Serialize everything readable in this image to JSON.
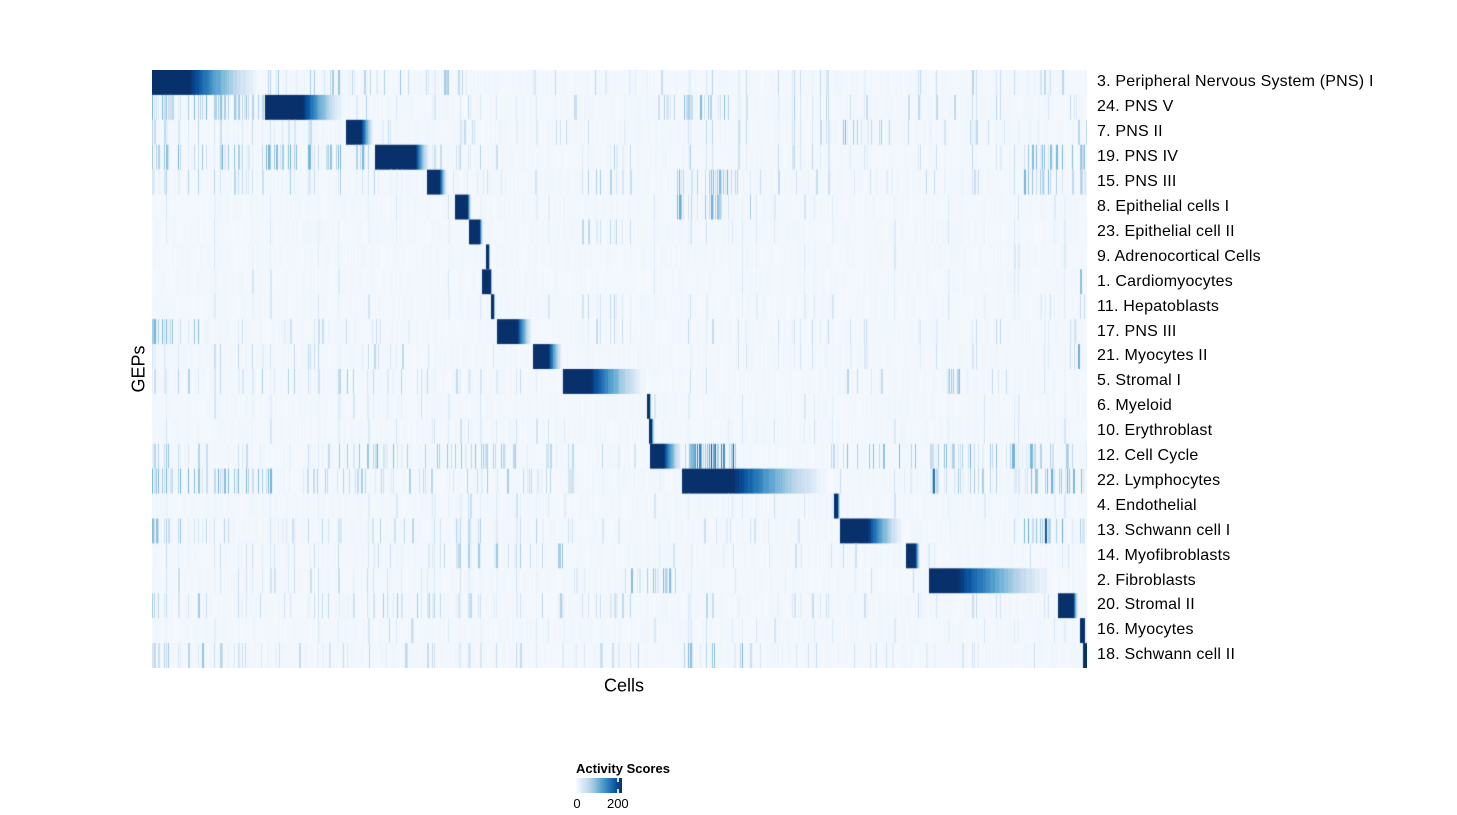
{
  "chart_data": {
    "type": "heatmap",
    "title": "",
    "xlabel": "Cells",
    "ylabel": "GEPs",
    "x_axis": {
      "tick_labels": [],
      "note": "individual cells, no tick labels shown"
    },
    "colormap": {
      "name": "Blues",
      "stops": [
        "#f7fbff",
        "#deebf7",
        "#c6dbef",
        "#9ecae1",
        "#6baed6",
        "#4292c6",
        "#2171b5",
        "#08519c",
        "#08306b"
      ]
    },
    "legend": {
      "title": "Activity Scores",
      "min": 0,
      "max": 220,
      "ticks": [
        {
          "value": 0,
          "label": "0"
        },
        {
          "value": 200,
          "label": "200"
        }
      ]
    },
    "rows": [
      {
        "label": "3. Peripheral Nervous System (PNS) I",
        "block": [
          0.0,
          0.04,
          0.118
        ],
        "noise": [
          [
            0.12,
            0.35,
            0.28,
            0.05,
            0.42
          ],
          [
            0.35,
            0.55,
            0.12,
            0.04,
            0.28
          ],
          [
            0.567,
            0.625,
            0.3,
            0.08,
            0.38
          ],
          [
            0.625,
            0.92,
            0.12,
            0.04,
            0.3
          ],
          [
            0.92,
            0.99,
            0.28,
            0.06,
            0.38
          ]
        ]
      },
      {
        "label": "24. PNS V",
        "block": [
          0.121,
          0.16,
          0.207
        ],
        "noise": [
          [
            0.0,
            0.12,
            0.55,
            0.08,
            0.48
          ],
          [
            0.21,
            0.28,
            0.25,
            0.05,
            0.33
          ],
          [
            0.3,
            0.55,
            0.1,
            0.04,
            0.28
          ],
          [
            0.535,
            0.625,
            0.4,
            0.08,
            0.45
          ],
          [
            0.625,
            1.0,
            0.14,
            0.04,
            0.32
          ]
        ]
      },
      {
        "label": "7. PNS II",
        "block": [
          0.207,
          0.224,
          0.237
        ],
        "noise": [
          [
            0.0,
            0.2,
            0.22,
            0.04,
            0.3
          ],
          [
            0.24,
            0.55,
            0.1,
            0.04,
            0.26
          ],
          [
            0.567,
            0.625,
            0.28,
            0.07,
            0.38
          ],
          [
            0.625,
            0.74,
            0.15,
            0.04,
            0.28
          ],
          [
            0.74,
            0.79,
            0.4,
            0.08,
            0.45
          ],
          [
            0.79,
            1.0,
            0.12,
            0.04,
            0.3
          ]
        ]
      },
      {
        "label": "19. PNS IV",
        "block": [
          0.239,
          0.281,
          0.297
        ],
        "noise": [
          [
            0.0,
            0.235,
            0.45,
            0.07,
            0.5
          ],
          [
            0.3,
            0.38,
            0.18,
            0.05,
            0.33
          ],
          [
            0.46,
            0.52,
            0.18,
            0.05,
            0.33
          ],
          [
            0.567,
            0.625,
            0.3,
            0.07,
            0.4
          ],
          [
            0.625,
            0.92,
            0.12,
            0.04,
            0.28
          ],
          [
            0.92,
            1.0,
            0.38,
            0.07,
            0.48
          ]
        ]
      },
      {
        "label": "15. PNS III",
        "block": [
          0.294,
          0.307,
          0.315
        ],
        "noise": [
          [
            0.0,
            0.29,
            0.26,
            0.04,
            0.36
          ],
          [
            0.32,
            0.45,
            0.14,
            0.04,
            0.28
          ],
          [
            0.46,
            0.53,
            0.28,
            0.06,
            0.38
          ],
          [
            0.562,
            0.632,
            0.5,
            0.12,
            0.52
          ],
          [
            0.632,
            0.92,
            0.13,
            0.04,
            0.28
          ],
          [
            0.92,
            1.0,
            0.4,
            0.08,
            0.5
          ]
        ]
      },
      {
        "label": "8. Epithelial cells I",
        "block": [
          0.324,
          0.337,
          0.341
        ],
        "noise": [
          [
            0.0,
            1.0,
            0.05,
            0.03,
            0.2
          ],
          [
            0.562,
            0.61,
            0.5,
            0.15,
            0.55
          ],
          [
            0.61,
            0.64,
            0.3,
            0.08,
            0.4
          ]
        ]
      },
      {
        "label": "23. Epithelial cell II",
        "block": [
          0.339,
          0.35,
          0.354
        ],
        "noise": [
          [
            0.0,
            1.0,
            0.05,
            0.03,
            0.18
          ],
          [
            0.46,
            0.53,
            0.26,
            0.05,
            0.3
          ],
          [
            0.567,
            0.625,
            0.24,
            0.05,
            0.3
          ]
        ]
      },
      {
        "label": "9. Adrenocortical Cells",
        "block": [
          0.357,
          0.359,
          0.361
        ],
        "noise": [
          [
            0.0,
            1.0,
            0.03,
            0.03,
            0.16
          ]
        ]
      },
      {
        "label": "1. Cardiomyocytes",
        "block": [
          0.353,
          0.361,
          0.364
        ],
        "noise": [
          [
            0.0,
            1.0,
            0.03,
            0.03,
            0.16
          ]
        ],
        "stripes": [
          [
            0.993,
            0.42
          ]
        ]
      },
      {
        "label": "11. Hepatoblasts",
        "block": [
          0.363,
          0.365,
          0.367
        ],
        "noise": [
          [
            0.0,
            1.0,
            0.04,
            0.03,
            0.18
          ],
          [
            0.46,
            0.53,
            0.24,
            0.05,
            0.3
          ],
          [
            0.567,
            0.625,
            0.18,
            0.04,
            0.26
          ],
          [
            0.92,
            1.0,
            0.18,
            0.04,
            0.28
          ]
        ]
      },
      {
        "label": "17. PNS III",
        "block": [
          0.369,
          0.39,
          0.408
        ],
        "noise": [
          [
            0.0,
            0.05,
            0.55,
            0.08,
            0.48
          ],
          [
            0.05,
            0.3,
            0.14,
            0.04,
            0.28
          ],
          [
            0.46,
            0.53,
            0.24,
            0.05,
            0.32
          ],
          [
            0.567,
            0.625,
            0.3,
            0.07,
            0.4
          ],
          [
            0.625,
            1.0,
            0.12,
            0.04,
            0.28
          ]
        ]
      },
      {
        "label": "21. Myocytes II",
        "block": [
          0.408,
          0.423,
          0.44
        ],
        "noise": [
          [
            0.0,
            0.3,
            0.18,
            0.04,
            0.3
          ],
          [
            0.35,
            0.38,
            0.35,
            0.07,
            0.38
          ],
          [
            0.567,
            0.625,
            0.22,
            0.05,
            0.32
          ],
          [
            0.625,
            1.0,
            0.08,
            0.03,
            0.24
          ]
        ],
        "stripes": [
          [
            0.99,
            0.5
          ]
        ]
      },
      {
        "label": "5. Stromal I",
        "block": [
          0.44,
          0.468,
          0.53
        ],
        "noise": [
          [
            0.0,
            0.2,
            0.2,
            0.04,
            0.33
          ],
          [
            0.2,
            0.3,
            0.28,
            0.06,
            0.38
          ],
          [
            0.3,
            0.44,
            0.14,
            0.04,
            0.28
          ],
          [
            0.567,
            0.625,
            0.22,
            0.05,
            0.32
          ],
          [
            0.74,
            0.79,
            0.2,
            0.05,
            0.3
          ],
          [
            0.84,
            0.88,
            0.38,
            0.08,
            0.45
          ],
          [
            0.88,
            1.0,
            0.14,
            0.04,
            0.28
          ]
        ]
      },
      {
        "label": "6. Myeloid",
        "block": [
          0.529,
          0.5315,
          0.534
        ],
        "noise": [
          [
            0.0,
            1.0,
            0.04,
            0.03,
            0.18
          ],
          [
            0.2,
            0.3,
            0.1,
            0.04,
            0.22
          ]
        ]
      },
      {
        "label": "10. Erythroblast",
        "block": [
          0.5315,
          0.534,
          0.537
        ],
        "noise": [
          [
            0.0,
            1.0,
            0.05,
            0.03,
            0.2
          ],
          [
            0.3,
            0.42,
            0.1,
            0.04,
            0.22
          ]
        ]
      },
      {
        "label": "12. Cell Cycle",
        "block": [
          0.533,
          0.547,
          0.568
        ],
        "noise": [
          [
            0.0,
            0.05,
            0.38,
            0.07,
            0.42
          ],
          [
            0.05,
            0.2,
            0.18,
            0.04,
            0.3
          ],
          [
            0.2,
            0.28,
            0.42,
            0.08,
            0.48
          ],
          [
            0.28,
            0.42,
            0.32,
            0.07,
            0.4
          ],
          [
            0.42,
            0.53,
            0.18,
            0.05,
            0.3
          ],
          [
            0.568,
            0.625,
            0.7,
            0.25,
            0.92
          ],
          [
            0.72,
            0.82,
            0.42,
            0.08,
            0.48
          ],
          [
            0.83,
            1.0,
            0.42,
            0.08,
            0.5
          ]
        ]
      },
      {
        "label": "22. Lymphocytes",
        "block": [
          0.567,
          0.621,
          0.728
        ],
        "noise": [
          [
            0.0,
            0.13,
            0.5,
            0.08,
            0.5
          ],
          [
            0.13,
            0.42,
            0.25,
            0.05,
            0.35
          ],
          [
            0.42,
            0.55,
            0.14,
            0.04,
            0.28
          ],
          [
            0.73,
            0.82,
            0.18,
            0.05,
            0.3
          ],
          [
            0.83,
            0.93,
            0.3,
            0.06,
            0.38
          ],
          [
            0.93,
            1.0,
            0.45,
            0.08,
            0.5
          ]
        ],
        "stripes": [
          [
            0.835,
            0.75
          ]
        ]
      },
      {
        "label": "4. Endothelial",
        "block": [
          0.729,
          0.733,
          0.736
        ],
        "noise": [
          [
            0.0,
            1.0,
            0.05,
            0.03,
            0.2
          ],
          [
            0.3,
            0.42,
            0.12,
            0.04,
            0.24
          ]
        ]
      },
      {
        "label": "13. Schwann cell I",
        "block": [
          0.736,
          0.765,
          0.804
        ],
        "noise": [
          [
            0.0,
            0.06,
            0.45,
            0.08,
            0.45
          ],
          [
            0.06,
            0.3,
            0.18,
            0.04,
            0.3
          ],
          [
            0.3,
            0.42,
            0.22,
            0.05,
            0.33
          ],
          [
            0.42,
            0.72,
            0.1,
            0.03,
            0.24
          ],
          [
            0.92,
            1.0,
            0.4,
            0.08,
            0.52
          ]
        ],
        "stripes": [
          [
            0.955,
            0.85
          ]
        ]
      },
      {
        "label": "14. Myofibroblasts",
        "block": [
          0.806,
          0.8165,
          0.821
        ],
        "noise": [
          [
            0.0,
            0.3,
            0.13,
            0.04,
            0.26
          ],
          [
            0.3,
            0.44,
            0.3,
            0.06,
            0.4
          ],
          [
            0.44,
            0.8,
            0.08,
            0.03,
            0.22
          ],
          [
            0.82,
            1.0,
            0.07,
            0.03,
            0.2
          ]
        ]
      },
      {
        "label": "2. Fibroblasts",
        "block": [
          0.831,
          0.861,
          0.968
        ],
        "noise": [
          [
            0.0,
            0.2,
            0.12,
            0.04,
            0.26
          ],
          [
            0.2,
            0.3,
            0.2,
            0.05,
            0.32
          ],
          [
            0.3,
            0.5,
            0.1,
            0.03,
            0.24
          ],
          [
            0.5,
            0.56,
            0.38,
            0.08,
            0.45
          ],
          [
            0.56,
            0.83,
            0.09,
            0.03,
            0.24
          ],
          [
            0.97,
            1.0,
            0.2,
            0.04,
            0.3
          ]
        ]
      },
      {
        "label": "20. Stromal II",
        "block": [
          0.969,
          0.985,
          0.99
        ],
        "noise": [
          [
            0.0,
            0.05,
            0.35,
            0.07,
            0.4
          ],
          [
            0.05,
            0.2,
            0.16,
            0.04,
            0.28
          ],
          [
            0.2,
            0.3,
            0.3,
            0.06,
            0.38
          ],
          [
            0.3,
            0.44,
            0.24,
            0.05,
            0.33
          ],
          [
            0.46,
            0.53,
            0.26,
            0.06,
            0.34
          ],
          [
            0.567,
            0.625,
            0.3,
            0.07,
            0.4
          ],
          [
            0.625,
            0.96,
            0.12,
            0.04,
            0.26
          ]
        ]
      },
      {
        "label": "16. Myocytes",
        "block": [
          0.993,
          0.9965,
          0.998
        ],
        "noise": [
          [
            0.0,
            1.0,
            0.05,
            0.03,
            0.18
          ],
          [
            0.25,
            0.28,
            0.3,
            0.06,
            0.36
          ],
          [
            0.35,
            0.38,
            0.22,
            0.05,
            0.3
          ],
          [
            0.567,
            0.625,
            0.16,
            0.04,
            0.26
          ]
        ]
      },
      {
        "label": "18. Schwann cell II",
        "block": [
          0.996,
          1.0,
          1.0
        ],
        "noise": [
          [
            0.0,
            0.1,
            0.38,
            0.07,
            0.42
          ],
          [
            0.1,
            0.3,
            0.2,
            0.05,
            0.3
          ],
          [
            0.3,
            0.48,
            0.13,
            0.04,
            0.26
          ],
          [
            0.48,
            0.52,
            0.32,
            0.07,
            0.38
          ],
          [
            0.567,
            0.632,
            0.42,
            0.1,
            0.5
          ],
          [
            0.632,
            0.95,
            0.12,
            0.04,
            0.26
          ]
        ]
      }
    ]
  }
}
